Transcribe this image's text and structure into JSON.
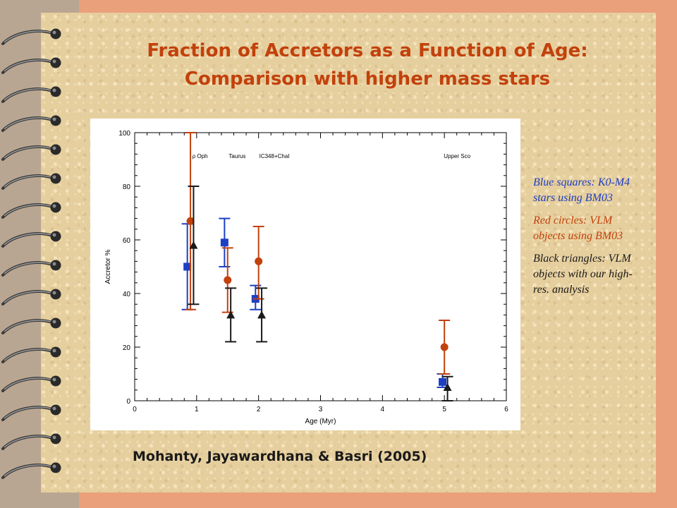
{
  "slide": {
    "title_line1": "Fraction of Accretors as a Function of Age:",
    "title_line2": "Comparison with higher mass stars",
    "citation": "Mohanty, Jayawardhana & Basri (2005)",
    "legend": {
      "blue": "Blue squares: K0-M4 stars using BM03",
      "red": "Red circles: VLM objects using BM03",
      "black": "Black triangles: VLM objects with our high-res. analysis"
    },
    "colors": {
      "title": "#c2410c",
      "blue": "#1d3fc4",
      "red": "#c2410c",
      "black": "#1a1a1a",
      "background": "#eaa07a",
      "paper": "#e6cf9e"
    }
  },
  "chart_data": {
    "type": "scatter",
    "xlabel": "Age (Myr)",
    "ylabel": "Accretor %",
    "xlim": [
      0,
      6
    ],
    "ylim": [
      0,
      100
    ],
    "xticks": [
      "0",
      "1",
      "2",
      "3",
      "4",
      "5",
      "6"
    ],
    "yticks": [
      "0",
      "20",
      "40",
      "60",
      "80",
      "100"
    ],
    "region_labels": [
      {
        "text": "ρ Oph",
        "x": 0.85
      },
      {
        "text": "Taurus",
        "x": 1.45
      },
      {
        "text": "IC348+ChaI",
        "x": 2.05
      },
      {
        "text": "Upper Sco",
        "x": 5.0
      }
    ],
    "series": [
      {
        "name": "Blue squares",
        "marker": "square",
        "color": "#1d3fc4",
        "points": [
          {
            "x": 0.85,
            "y": 50,
            "lo": 34,
            "hi": 66
          },
          {
            "x": 1.45,
            "y": 59,
            "lo": 50,
            "hi": 68
          },
          {
            "x": 1.95,
            "y": 38,
            "lo": 34,
            "hi": 43
          },
          {
            "x": 4.97,
            "y": 7,
            "lo": 5,
            "hi": 10
          }
        ]
      },
      {
        "name": "Red circles",
        "marker": "circle",
        "color": "#c2410c",
        "points": [
          {
            "x": 0.9,
            "y": 67,
            "lo": 34,
            "hi": 100
          },
          {
            "x": 1.5,
            "y": 45,
            "lo": 33,
            "hi": 57
          },
          {
            "x": 2.0,
            "y": 52,
            "lo": 38,
            "hi": 65
          },
          {
            "x": 5.0,
            "y": 20,
            "lo": 10,
            "hi": 30
          }
        ]
      },
      {
        "name": "Black triangles",
        "marker": "triangle",
        "color": "#1a1a1a",
        "points": [
          {
            "x": 0.95,
            "y": 58,
            "lo": 36,
            "hi": 80
          },
          {
            "x": 1.55,
            "y": 32,
            "lo": 22,
            "hi": 42
          },
          {
            "x": 2.05,
            "y": 32,
            "lo": 22,
            "hi": 42
          },
          {
            "x": 5.05,
            "y": 5,
            "lo": 0,
            "hi": 9
          }
        ]
      }
    ]
  }
}
